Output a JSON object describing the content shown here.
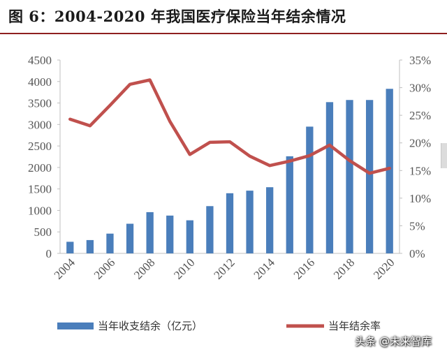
{
  "header": {
    "title": "图 6：2004-2020 年我国医疗保险当年结余情况"
  },
  "watermark": "头条 @未来智库",
  "colors": {
    "bar": "#4a7ebb",
    "line": "#c0504d",
    "axis_text": "#555555",
    "axis_line": "#bfbfbf"
  },
  "chart_data": {
    "type": "bar",
    "x": [
      2004,
      2005,
      2006,
      2007,
      2008,
      2009,
      2010,
      2011,
      2012,
      2013,
      2014,
      2015,
      2016,
      2017,
      2018,
      2019,
      2020
    ],
    "x_tick_labels": [
      "2004",
      "2006",
      "2008",
      "2010",
      "2012",
      "2014",
      "2016",
      "2018",
      "2020"
    ],
    "series": [
      {
        "name": "当年收支结余（亿元）",
        "type": "bar",
        "axis": "left",
        "values": [
          270,
          310,
          460,
          690,
          960,
          880,
          770,
          1100,
          1400,
          1460,
          1540,
          2260,
          2950,
          3520,
          3570,
          3570,
          3830
        ]
      },
      {
        "name": "当年结余率",
        "type": "line",
        "axis": "right",
        "values": [
          24.3,
          23.1,
          26.8,
          30.6,
          31.4,
          23.9,
          17.9,
          20.1,
          20.2,
          17.6,
          15.9,
          16.7,
          17.7,
          19.6,
          16.8,
          14.5,
          15.4
        ]
      }
    ],
    "y_left": {
      "range": [
        0,
        4500
      ],
      "ticks": [
        "0",
        "500",
        "1000",
        "1500",
        "2000",
        "2500",
        "3000",
        "3500",
        "4000",
        "4500"
      ]
    },
    "y_right": {
      "range": [
        0,
        35
      ],
      "ticks": [
        "0%",
        "5%",
        "10%",
        "15%",
        "20%",
        "25%",
        "30%",
        "35%"
      ]
    },
    "grid": false,
    "legend_position": "bottom"
  }
}
